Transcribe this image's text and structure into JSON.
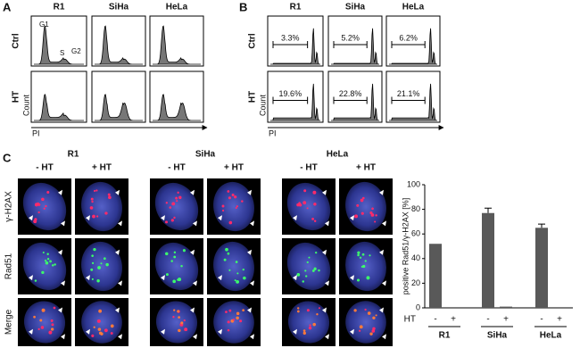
{
  "panel_a": {
    "label": "A",
    "columns": [
      "R1",
      "SiHa",
      "HeLa"
    ],
    "rows": [
      "Ctrl",
      "HT"
    ],
    "y_label": "Count",
    "x_label": "PI",
    "peaks": [
      "G1",
      "S",
      "G2"
    ]
  },
  "panel_b": {
    "label": "B",
    "columns": [
      "R1",
      "SiHa",
      "HeLa"
    ],
    "rows": [
      "Ctrl",
      "HT"
    ],
    "y_label": "Count",
    "x_label": "PI",
    "percentages": [
      [
        "3.3%",
        "5.2%",
        "6.2%"
      ],
      [
        "19.6%",
        "22.8%",
        "21.1%"
      ]
    ]
  },
  "panel_c": {
    "label": "C",
    "groups": [
      "R1",
      "SiHa",
      "HeLa"
    ],
    "conditions": [
      "- HT",
      "+ HT"
    ],
    "rows": [
      "γ-H2AX",
      "Rad51",
      "Merge"
    ]
  },
  "chart_data": {
    "type": "bar",
    "y_label": "positive Rad51/γ-H2AX [%]",
    "row_label": "HT",
    "groups": [
      "R1",
      "SiHa",
      "HeLa"
    ],
    "categories": [
      "-",
      "+",
      "-",
      "+",
      "-",
      "+"
    ],
    "values": [
      52,
      0,
      77,
      1,
      65,
      0
    ],
    "errors": [
      null,
      null,
      4,
      null,
      3,
      null
    ],
    "color": "#595959",
    "ylim": [
      0,
      100
    ],
    "yticks": [
      0,
      20,
      40,
      60,
      80,
      100
    ]
  }
}
